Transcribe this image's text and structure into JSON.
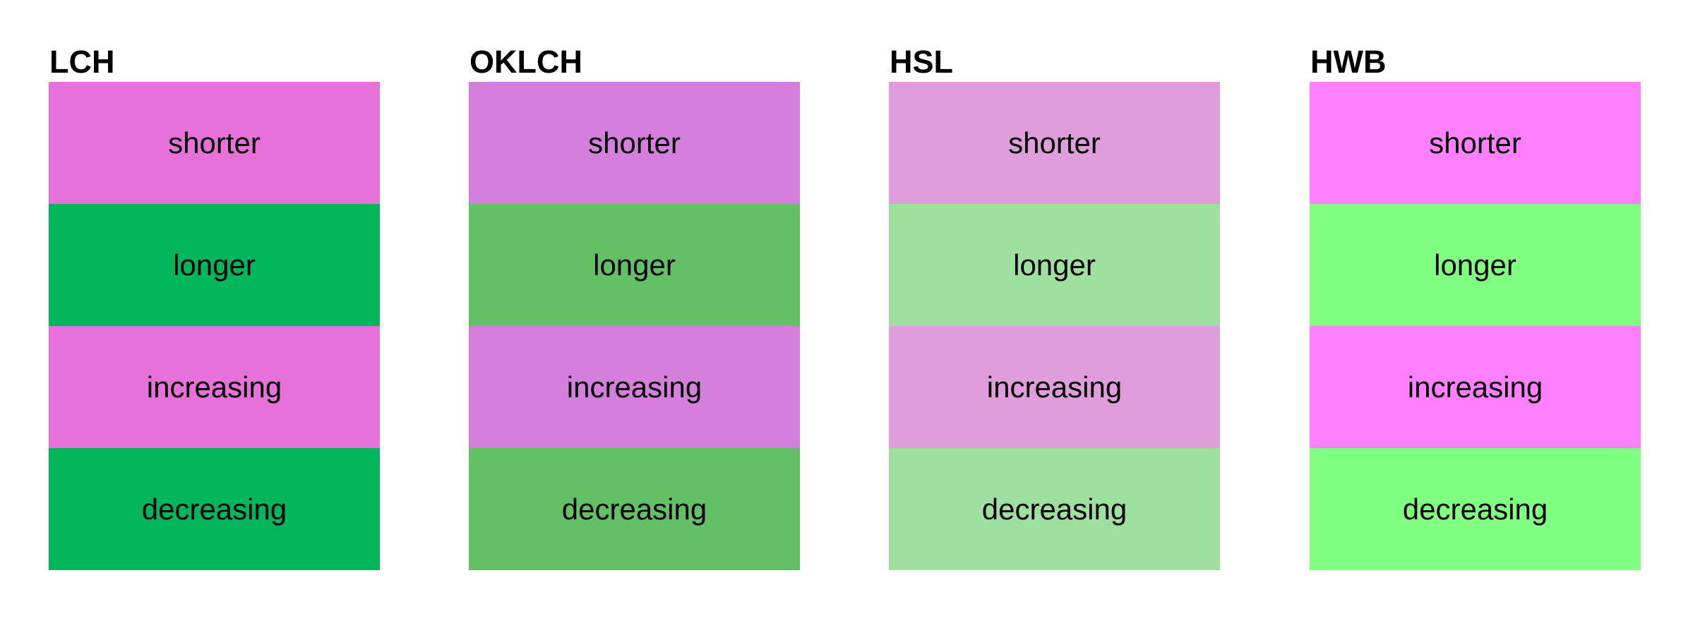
{
  "columns": [
    {
      "title": "LCH",
      "colors": {
        "pink": "#e571d9",
        "green": "#00b55b"
      },
      "rows": [
        "shorter",
        "longer",
        "increasing",
        "decreasing"
      ]
    },
    {
      "title": "OKLCH",
      "colors": {
        "pink": "#d57fdd",
        "green": "#63c066"
      },
      "rows": [
        "shorter",
        "longer",
        "increasing",
        "decreasing"
      ]
    },
    {
      "title": "HSL",
      "colors": {
        "pink": "#df9edb",
        "green": "#9fdf9f"
      },
      "rows": [
        "shorter",
        "longer",
        "increasing",
        "decreasing"
      ]
    },
    {
      "title": "HWB",
      "colors": {
        "pink": "#ff80ff",
        "green": "#80ff80"
      },
      "rows": [
        "shorter",
        "longer",
        "increasing",
        "decreasing"
      ]
    }
  ]
}
